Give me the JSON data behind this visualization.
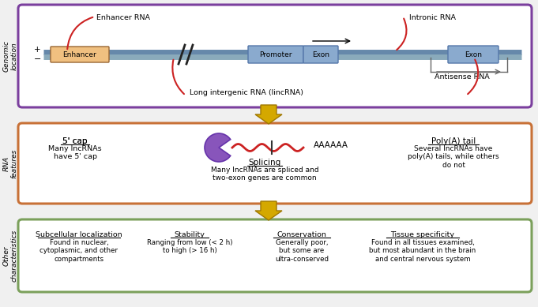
{
  "bg_color": "#f0f0f0",
  "panel1_border": "#7B3F9E",
  "panel2_border": "#C87137",
  "panel3_border": "#7BA05B",
  "panel_bg": "#ffffff",
  "arrow_color": "#D4A800",
  "arrow_edge": "#A07800",
  "genomic_label": "Genomic\nlocation",
  "rna_label": "RNA\nfeatures",
  "other_label": "Other\ncharacteristics",
  "enhancer_rna": "Enhancer RNA",
  "enhancer_box": "Enhancer",
  "lincrna": "Long intergenic RNA (lincRNA)",
  "promoter": "Promoter",
  "exon1": "Exon",
  "exon2": "Exon",
  "intronic": "Intronic RNA",
  "antisense": "Antisense RNA",
  "panel2_title1": "5' cap",
  "panel2_text1": "Many lncRNAs\nhave 5' cap",
  "panel2_title2": "Splicing",
  "panel2_text2": "Many lncRNAs are spliced and\ntwo-exon genes are common",
  "panel2_polyA": "AAAAAA",
  "panel2_title3": "Poly(A) tail",
  "panel2_text3": "Several lncRNAs have\npoly(A) tails, while others\ndo not",
  "panel3_title1": "Subcellular localization",
  "panel3_text1": "Found in nuclear,\ncytoplasmic, and other\ncompartments",
  "panel3_title2": "Stability",
  "panel3_text2": "Ranging from low (< 2 h)\nto high (> 16 h)",
  "panel3_title3": "Conservation",
  "panel3_text3": "Generally poor,\nbut some are\nultra-conserved",
  "panel3_title4": "Tissue specificity",
  "panel3_text4": "Found in all tissues examined,\nbut most abundant in the brain\nand central nervous system",
  "dna_color1": "#6688AA",
  "dna_color2": "#8AAABB",
  "enhancer_face": "#F0C080",
  "enhancer_edge": "#996633",
  "box_face": "#8AAACE",
  "box_edge": "#5577AA",
  "red_line": "#CC2222",
  "purple_face": "#8855BB",
  "purple_edge": "#6633AA"
}
